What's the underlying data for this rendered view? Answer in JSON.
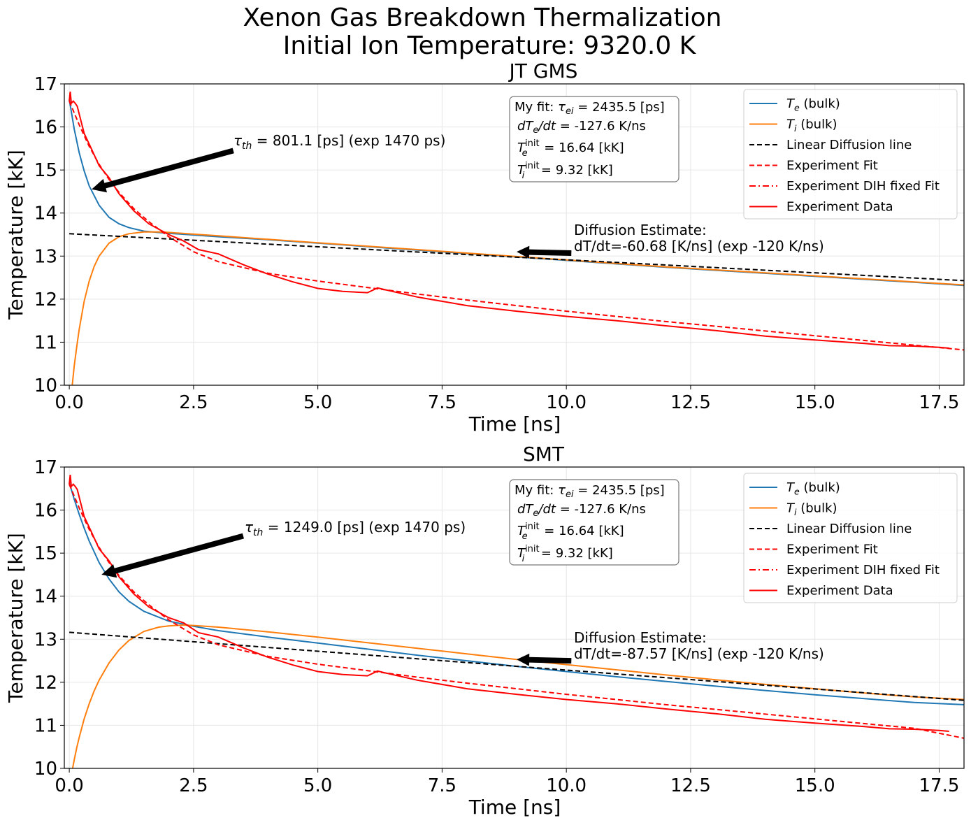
{
  "figure": {
    "suptitle_line1": "Xenon Gas Breakdown Thermalization",
    "suptitle_line2": "Initial Ion Temperature: 9320.0 K"
  },
  "colors": {
    "te": "#1f77b4",
    "ti": "#ff7f0e",
    "linear": "#000000",
    "experiment": "#ff0000",
    "grid": "#e6e6e6",
    "legend_border": "#cccccc",
    "box_border": "#777777"
  },
  "chart_data": [
    {
      "type": "line",
      "title": "JT GMS",
      "xlabel": "Time [ns]",
      "ylabel": "Temperature [kK]",
      "xlim": [
        -0.1,
        18.0
      ],
      "ylim": [
        10,
        17
      ],
      "xticks": [
        0.0,
        2.5,
        5.0,
        7.5,
        10.0,
        12.5,
        15.0,
        17.5
      ],
      "xtick_labels": [
        "0.0",
        "2.5",
        "5.0",
        "7.5",
        "10.0",
        "12.5",
        "15.0",
        "17.5"
      ],
      "yticks": [
        10,
        11,
        12,
        13,
        14,
        15,
        16,
        17
      ],
      "ytick_labels": [
        "10",
        "11",
        "12",
        "13",
        "14",
        "15",
        "16",
        "17"
      ],
      "grid": true,
      "legend_position": "top-right",
      "series": [
        {
          "name": "T_e (bulk)",
          "style": "solid",
          "color_key": "te",
          "x": [
            0,
            0.1,
            0.2,
            0.3,
            0.4,
            0.6,
            0.8,
            1.0,
            1.2,
            1.5,
            2.0,
            2.5,
            3,
            4,
            5,
            6,
            7,
            8,
            9,
            10,
            11,
            12,
            13,
            14,
            15,
            16,
            17,
            18
          ],
          "y": [
            16.64,
            15.95,
            15.4,
            14.98,
            14.63,
            14.18,
            13.9,
            13.75,
            13.66,
            13.58,
            13.53,
            13.49,
            13.45,
            13.38,
            13.3,
            13.22,
            13.14,
            13.06,
            12.98,
            12.9,
            12.82,
            12.74,
            12.67,
            12.6,
            12.53,
            12.46,
            12.39,
            12.32
          ]
        },
        {
          "name": "T_i (bulk)",
          "style": "solid",
          "color_key": "ti",
          "x": [
            0.05,
            0.1,
            0.15,
            0.2,
            0.3,
            0.4,
            0.5,
            0.6,
            0.8,
            1.0,
            1.2,
            1.5,
            1.8,
            2.0,
            2.5,
            3,
            4,
            5,
            6,
            7,
            8,
            9,
            10,
            11,
            12,
            13,
            14,
            15,
            16,
            17,
            18
          ],
          "y": [
            9.9,
            10.45,
            10.9,
            11.3,
            11.95,
            12.42,
            12.76,
            13.0,
            13.3,
            13.45,
            13.52,
            13.56,
            13.56,
            13.55,
            13.51,
            13.47,
            13.39,
            13.31,
            13.23,
            13.15,
            13.07,
            12.99,
            12.91,
            12.83,
            12.75,
            12.68,
            12.61,
            12.54,
            12.47,
            12.4,
            12.33
          ]
        },
        {
          "name": "Linear Diffusion line",
          "style": "dashed",
          "color_key": "linear",
          "x": [
            0,
            18
          ],
          "y": [
            13.52,
            12.43
          ]
        },
        {
          "name": "Experiment Fit",
          "style": "dashed",
          "color_key": "experiment",
          "x": [
            0,
            0.2,
            0.4,
            0.6,
            0.8,
            1.0,
            1.3,
            1.6,
            2.0,
            2.5,
            3,
            4,
            5,
            6,
            7,
            8,
            9,
            10,
            11,
            12,
            13,
            14,
            15,
            16,
            17,
            18
          ],
          "y": [
            16.6,
            16.05,
            15.55,
            15.13,
            14.78,
            14.48,
            14.1,
            13.8,
            13.45,
            13.1,
            12.87,
            12.6,
            12.42,
            12.27,
            12.12,
            11.98,
            11.85,
            11.72,
            11.6,
            11.48,
            11.37,
            11.26,
            11.15,
            11.04,
            10.93,
            10.82
          ]
        },
        {
          "name": "Experiment DIH fixed Fit",
          "style": "dashdot",
          "color_key": "experiment",
          "x": [],
          "y": []
        },
        {
          "name": "Experiment Data",
          "style": "solid",
          "color_key": "experiment",
          "x": [
            0,
            0.02,
            0.04,
            0.08,
            0.12,
            0.16,
            0.2,
            0.3,
            0.45,
            0.6,
            0.8,
            1.0,
            1.3,
            1.6,
            2.0,
            2.3,
            2.6,
            3.0,
            3.5,
            4.0,
            4.5,
            5.0,
            5.5,
            6.0,
            6.2,
            6.5,
            7.0,
            8.0,
            9.0,
            10.0,
            11.0,
            12.0,
            13.0,
            14.0,
            15.0,
            16.0,
            16.5,
            17.0,
            17.5,
            17.7
          ],
          "y": [
            16.6,
            16.82,
            16.55,
            16.6,
            16.55,
            16.48,
            16.3,
            15.85,
            15.48,
            15.1,
            14.82,
            14.45,
            14.05,
            13.75,
            13.5,
            13.35,
            13.15,
            13.05,
            12.8,
            12.58,
            12.4,
            12.25,
            12.18,
            12.15,
            12.26,
            12.18,
            12.05,
            11.85,
            11.72,
            11.6,
            11.5,
            11.38,
            11.27,
            11.14,
            11.05,
            10.97,
            10.92,
            10.91,
            10.88,
            10.86
          ]
        }
      ],
      "annotations": {
        "tau_th": "τth = 801.1 [ps] (exp 1470 ps)",
        "tau_arrow_from": [
          3.3,
          15.45
        ],
        "tau_arrow_to": [
          0.45,
          14.55
        ],
        "diffusion_line1": "Diffusion Estimate:",
        "diffusion_line2": " dT/dt=-60.68 [K/ns] (exp -120 K/ns)",
        "diff_arrow_from": [
          10.1,
          13.07
        ],
        "diff_arrow_to": [
          9.0,
          13.1
        ],
        "fit_box": [
          "My fit: τei = 2435.5 [ps]",
          " dTe/dt = -127.6 K/ns",
          " Te^init = 16.64 [kK]",
          " Ti^init = 9.32 [kK]"
        ]
      }
    },
    {
      "type": "line",
      "title": "SMT",
      "xlabel": "Time [ns]",
      "ylabel": "Temperature [kK]",
      "xlim": [
        -0.1,
        18.0
      ],
      "ylim": [
        10,
        17
      ],
      "xticks": [
        0.0,
        2.5,
        5.0,
        7.5,
        10.0,
        12.5,
        15.0,
        17.5
      ],
      "xtick_labels": [
        "0.0",
        "2.5",
        "5.0",
        "7.5",
        "10.0",
        "12.5",
        "15.0",
        "17.5"
      ],
      "yticks": [
        10,
        11,
        12,
        13,
        14,
        15,
        16,
        17
      ],
      "ytick_labels": [
        "10",
        "11",
        "12",
        "13",
        "14",
        "15",
        "16",
        "17"
      ],
      "grid": true,
      "legend_position": "top-right",
      "series": [
        {
          "name": "T_e (bulk)",
          "style": "solid",
          "color_key": "te",
          "x": [
            0,
            0.1,
            0.2,
            0.3,
            0.4,
            0.6,
            0.8,
            1.0,
            1.2,
            1.5,
            2.0,
            2.5,
            3,
            4,
            5,
            6,
            7,
            8,
            9,
            10,
            11,
            12,
            13,
            14,
            15,
            16,
            17,
            18
          ],
          "y": [
            16.64,
            16.25,
            15.9,
            15.58,
            15.28,
            14.78,
            14.4,
            14.1,
            13.88,
            13.65,
            13.42,
            13.3,
            13.2,
            13.05,
            12.91,
            12.77,
            12.63,
            12.5,
            12.37,
            12.25,
            12.13,
            12.02,
            11.91,
            11.81,
            11.71,
            11.62,
            11.53,
            11.48
          ]
        },
        {
          "name": "T_i (bulk)",
          "style": "solid",
          "color_key": "ti",
          "x": [
            0.05,
            0.1,
            0.15,
            0.2,
            0.3,
            0.4,
            0.5,
            0.6,
            0.8,
            1.0,
            1.2,
            1.5,
            1.8,
            2.0,
            2.3,
            2.5,
            3,
            4,
            5,
            6,
            7,
            8,
            9,
            10,
            11,
            12,
            13,
            14,
            15,
            16,
            17,
            18
          ],
          "y": [
            9.9,
            10.2,
            10.48,
            10.72,
            11.15,
            11.5,
            11.8,
            12.05,
            12.45,
            12.75,
            12.97,
            13.18,
            13.28,
            13.31,
            13.33,
            13.32,
            13.28,
            13.17,
            13.05,
            12.92,
            12.79,
            12.66,
            12.53,
            12.41,
            12.29,
            12.17,
            12.06,
            11.95,
            11.85,
            11.75,
            11.66,
            11.6
          ]
        },
        {
          "name": "Linear Diffusion line",
          "style": "dashed",
          "color_key": "linear",
          "x": [
            0,
            18
          ],
          "y": [
            13.16,
            11.58
          ]
        },
        {
          "name": "Experiment Fit",
          "style": "dashed",
          "color_key": "experiment",
          "x": [
            0,
            0.2,
            0.4,
            0.6,
            0.8,
            1.0,
            1.3,
            1.6,
            2.0,
            2.5,
            3,
            4,
            5,
            6,
            7,
            8,
            9,
            10,
            11,
            12,
            13,
            14,
            15,
            16,
            17,
            18
          ],
          "y": [
            16.6,
            16.05,
            15.55,
            15.13,
            14.78,
            14.48,
            14.1,
            13.8,
            13.45,
            13.1,
            12.87,
            12.6,
            12.42,
            12.27,
            12.12,
            11.98,
            11.85,
            11.72,
            11.6,
            11.48,
            11.37,
            11.26,
            11.15,
            11.04,
            10.93,
            10.7
          ]
        },
        {
          "name": "Experiment DIH fixed Fit",
          "style": "dashdot",
          "color_key": "experiment",
          "x": [],
          "y": []
        },
        {
          "name": "Experiment Data",
          "style": "solid",
          "color_key": "experiment",
          "x": [
            0,
            0.02,
            0.04,
            0.08,
            0.12,
            0.16,
            0.2,
            0.3,
            0.45,
            0.6,
            0.8,
            1.0,
            1.3,
            1.6,
            2.0,
            2.3,
            2.6,
            3.0,
            3.5,
            4.0,
            4.5,
            5.0,
            5.5,
            6.0,
            6.2,
            6.5,
            7.0,
            8.0,
            9.0,
            10.0,
            11.0,
            12.0,
            13.0,
            14.0,
            15.0,
            16.0,
            16.5,
            17.0,
            17.5,
            17.7
          ],
          "y": [
            16.6,
            16.82,
            16.55,
            16.6,
            16.55,
            16.48,
            16.3,
            15.85,
            15.48,
            15.1,
            14.82,
            14.45,
            14.05,
            13.75,
            13.5,
            13.38,
            13.15,
            13.05,
            12.8,
            12.58,
            12.4,
            12.25,
            12.18,
            12.15,
            12.26,
            12.18,
            12.05,
            11.85,
            11.72,
            11.6,
            11.5,
            11.38,
            11.27,
            11.14,
            11.05,
            10.97,
            10.92,
            10.91,
            10.88,
            10.86
          ]
        }
      ],
      "annotations": {
        "tau_th": "τth = 1249.0 [ps] (exp 1470 ps)",
        "tau_arrow_from": [
          3.5,
          15.4
        ],
        "tau_arrow_to": [
          0.65,
          14.5
        ],
        "diffusion_line1": "Diffusion Estimate:",
        "diffusion_line2": " dT/dt=-87.57 [K/ns] (exp -120 K/ns)",
        "diff_arrow_from": [
          10.1,
          12.5
        ],
        "diff_arrow_to": [
          9.0,
          12.53
        ],
        "fit_box": [
          "My fit: τei = 2435.5 [ps]",
          " dTe/dt = -127.6 K/ns",
          " Te^init = 16.64 [kK]",
          " Ti^init = 9.32 [kK]"
        ]
      }
    }
  ]
}
